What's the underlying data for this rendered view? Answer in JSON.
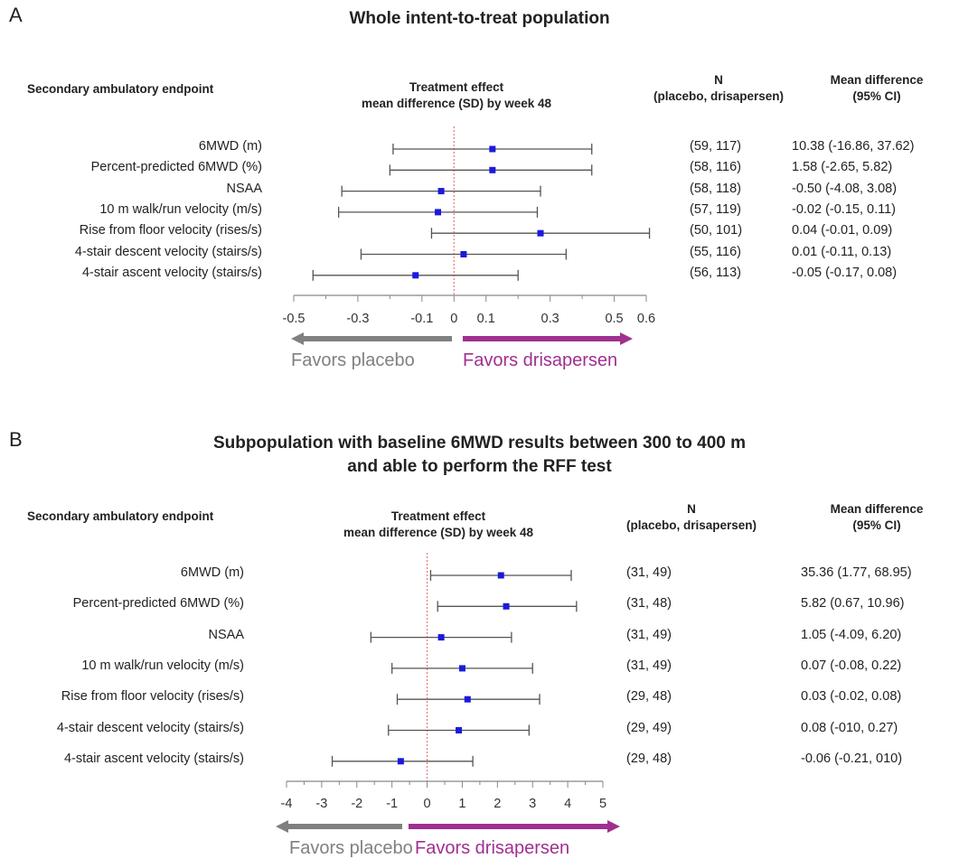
{
  "colors": {
    "placebo": "#808080",
    "drisapersen": "#a0308f",
    "point": "#1a1adc",
    "zero_line": "#e87878",
    "whisker": "#555555"
  },
  "chart_data": [
    {
      "type": "forest",
      "panel_label": "A",
      "title": "Whole intent-to-treat population",
      "headers": {
        "endpoint": "Secondary ambulatory endpoint",
        "effect": [
          "Treatment effect",
          "mean difference (SD) by week 48"
        ],
        "n": [
          "N",
          "(placebo, drisapersen)"
        ],
        "md": [
          "Mean difference",
          "(95% CI)"
        ]
      },
      "xlim": [
        -0.55,
        0.65
      ],
      "ticks": [
        {
          "value": -0.5,
          "label": "-0.5"
        },
        {
          "value": -0.3,
          "label": "-0.3"
        },
        {
          "value": -0.1,
          "label": "-0.1"
        },
        {
          "value": 0,
          "label": "0"
        },
        {
          "value": 0.1,
          "label": "0.1"
        },
        {
          "value": 0.3,
          "label": "0.3"
        },
        {
          "value": 0.5,
          "label": "0.5"
        },
        {
          "value": 0.6,
          "label": "0.6"
        }
      ],
      "minor_ticks": [
        -0.4,
        -0.2,
        0.2,
        0.4
      ],
      "favors": {
        "left": "Favors placebo",
        "right": "Favors drisapersen"
      },
      "rows": [
        {
          "label": "6MWD (m)",
          "point": 0.12,
          "low": -0.19,
          "high": 0.43,
          "n": "(59, 117)",
          "md": "10.38 (-16.86, 37.62)"
        },
        {
          "label": "Percent-predicted 6MWD (%)",
          "point": 0.12,
          "low": -0.2,
          "high": 0.43,
          "n": "(58, 116)",
          "md": "1.58 (-2.65, 5.82)"
        },
        {
          "label": "NSAA",
          "point": -0.04,
          "low": -0.35,
          "high": 0.27,
          "n": "(58, 118)",
          "md": "-0.50 (-4.08, 3.08)"
        },
        {
          "label": "10 m walk/run velocity (m/s)",
          "point": -0.05,
          "low": -0.36,
          "high": 0.26,
          "n": "(57, 119)",
          "md": "-0.02 (-0.15, 0.11)"
        },
        {
          "label": "Rise from floor velocity (rises/s)",
          "point": 0.27,
          "low": -0.07,
          "high": 0.61,
          "n": "(50, 101)",
          "md": "0.04 (-0.01, 0.09)"
        },
        {
          "label": "4-stair descent velocity (stairs/s)",
          "point": 0.03,
          "low": -0.29,
          "high": 0.35,
          "n": "(55, 116)",
          "md": "0.01 (-0.11, 0.13)"
        },
        {
          "label": "4-stair ascent velocity (stairs/s)",
          "point": -0.12,
          "low": -0.44,
          "high": 0.2,
          "n": "(56, 113)",
          "md": "-0.05 (-0.17, 0.08)"
        }
      ]
    },
    {
      "type": "forest",
      "panel_label": "B",
      "title": [
        "Subpopulation with baseline 6MWD results between 300 to 400 m",
        "and able to perform the RFF test"
      ],
      "headers": {
        "endpoint": "Secondary ambulatory endpoint",
        "effect": [
          "Treatment effect",
          "mean difference (SD) by week 48"
        ],
        "n": [
          "N",
          "(placebo, drisapersen)"
        ],
        "md": [
          "Mean difference",
          "(95% CI)"
        ]
      },
      "xlim": [
        -4.2,
        5.2
      ],
      "ticks": [
        {
          "value": -4,
          "label": "-4"
        },
        {
          "value": -3,
          "label": "-3"
        },
        {
          "value": -2,
          "label": "-2"
        },
        {
          "value": -1,
          "label": "-1"
        },
        {
          "value": 0,
          "label": "0"
        },
        {
          "value": 1,
          "label": "1"
        },
        {
          "value": 2,
          "label": "2"
        },
        {
          "value": 3,
          "label": "3"
        },
        {
          "value": 4,
          "label": "4"
        },
        {
          "value": 5,
          "label": "5"
        }
      ],
      "minor_ticks": [
        -3.5,
        -2.5,
        -1.5,
        -0.5,
        0.5,
        1.5,
        2.5,
        3.5,
        4.5
      ],
      "favors": {
        "left": "Favors placebo",
        "right": "Favors drisapersen"
      },
      "rows": [
        {
          "label": "6MWD (m)",
          "point": 2.1,
          "low": 0.1,
          "high": 4.1,
          "n": "(31, 49)",
          "md": "35.36 (1.77, 68.95)"
        },
        {
          "label": "Percent-predicted 6MWD (%)",
          "point": 2.25,
          "low": 0.3,
          "high": 4.25,
          "n": "(31, 48)",
          "md": "5.82 (0.67, 10.96)"
        },
        {
          "label": "NSAA",
          "point": 0.4,
          "low": -1.6,
          "high": 2.4,
          "n": "(31, 49)",
          "md": "1.05 (-4.09, 6.20)"
        },
        {
          "label": "10 m walk/run velocity (m/s)",
          "point": 1.0,
          "low": -1.0,
          "high": 3.0,
          "n": "(31, 49)",
          "md": "0.07 (-0.08, 0.22)"
        },
        {
          "label": "Rise from floor velocity (rises/s)",
          "point": 1.15,
          "low": -0.85,
          "high": 3.2,
          "n": "(29, 48)",
          "md": "0.03 (-0.02, 0.08)"
        },
        {
          "label": "4-stair descent velocity (stairs/s)",
          "point": 0.9,
          "low": -1.1,
          "high": 2.9,
          "n": "(29, 49)",
          "md": "0.08 (-010, 0.27)"
        },
        {
          "label": "4-stair ascent velocity (stairs/s)",
          "point": -0.75,
          "low": -2.7,
          "high": 1.3,
          "n": "(29, 48)",
          "md": "-0.06 (-0.21, 010)"
        }
      ]
    }
  ]
}
